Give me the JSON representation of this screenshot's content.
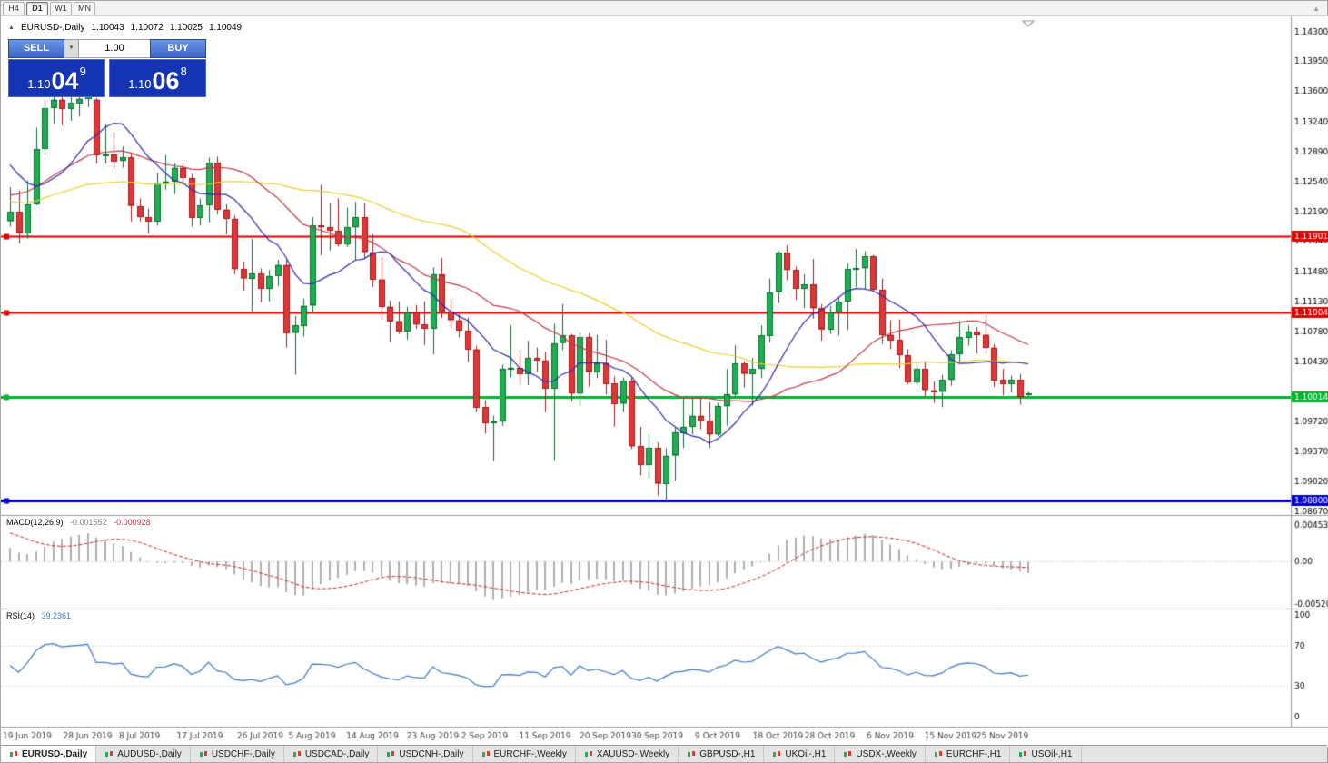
{
  "icons": {
    "one_click_toggle": "▲",
    "volume_chevron": "▼",
    "toolbar_right": "▲"
  },
  "toolbar": {
    "timeframes": [
      {
        "label": "H4",
        "active": false
      },
      {
        "label": "D1",
        "active": true
      },
      {
        "label": "W1",
        "active": false
      },
      {
        "label": "MN",
        "active": false
      }
    ]
  },
  "header": {
    "symbol_line": "EURUSD-,Daily",
    "ohlc": [
      "1.10043",
      "1.10072",
      "1.10025",
      "1.10049"
    ]
  },
  "one_click": {
    "sell_label": "SELL",
    "buy_label": "BUY",
    "volume": "1.00",
    "sell_price": {
      "prefix": "1.10",
      "big": "04",
      "sup": "9"
    },
    "buy_price": {
      "prefix": "1.10",
      "big": "06",
      "sup": "8"
    }
  },
  "indicators": {
    "macd": {
      "label": "MACD(12,26,9)",
      "value1": "-0.001552",
      "value2": "-0.000928",
      "scale": [
        "0.004536",
        "0.00",
        "-0.005205"
      ]
    },
    "rsi": {
      "label": "RSI(14)",
      "value": "39.2361",
      "scale": [
        "100",
        "70",
        "30",
        "0"
      ],
      "levels": [
        70,
        30
      ]
    }
  },
  "tabs": [
    {
      "label": "EURUSD-,Daily",
      "active": true
    },
    {
      "label": "AUDUSD-,Daily",
      "active": false
    },
    {
      "label": "USDCHF-,Daily",
      "active": false
    },
    {
      "label": "USDCAD-,Daily",
      "active": false
    },
    {
      "label": "USDCNH-,Daily",
      "active": false
    },
    {
      "label": "EURCHF-,Weekly",
      "active": false
    },
    {
      "label": "XAUUSD-,Weekly",
      "active": false
    },
    {
      "label": "GBPUSD-,H1",
      "active": false
    },
    {
      "label": "UKOil-,H1",
      "active": false
    },
    {
      "label": "USDX-,Weekly",
      "active": false
    },
    {
      "label": "EURCHF-,H1",
      "active": false
    },
    {
      "label": "USOil-,H1",
      "active": false
    }
  ],
  "chart_data": {
    "type": "candlestick",
    "symbol": "EURUSD-",
    "timeframe": "Daily",
    "price_axis": {
      "min": 1.08625,
      "max": 1.14455,
      "labels": [
        "1.14300",
        "1.13950",
        "1.13600",
        "1.13240",
        "1.12890",
        "1.12540",
        "1.12190",
        "1.11840",
        "1.11480",
        "1.11130",
        "1.10780",
        "1.10430",
        "1.09720",
        "1.09370",
        "1.09020",
        "1.08670"
      ]
    },
    "date_labels": [
      {
        "label": "19 Jun 2019",
        "index": 2
      },
      {
        "label": "28 Jun 2019",
        "index": 9
      },
      {
        "label": "8 Jul 2019",
        "index": 15
      },
      {
        "label": "17 Jul 2019",
        "index": 22
      },
      {
        "label": "26 Jul 2019",
        "index": 29
      },
      {
        "label": "5 Aug 2019",
        "index": 35
      },
      {
        "label": "14 Aug 2019",
        "index": 42
      },
      {
        "label": "23 Aug 2019",
        "index": 49
      },
      {
        "label": "2 Sep 2019",
        "index": 55
      },
      {
        "label": "11 Sep 2019",
        "index": 62
      },
      {
        "label": "20 Sep 2019",
        "index": 69
      },
      {
        "label": "30 Sep 2019",
        "index": 75
      },
      {
        "label": "9 Oct 2019",
        "index": 82
      },
      {
        "label": "18 Oct 2019",
        "index": 89
      },
      {
        "label": "28 Oct 2019",
        "index": 95
      },
      {
        "label": "6 Nov 2019",
        "index": 102
      },
      {
        "label": "15 Nov 2019",
        "index": 109
      },
      {
        "label": "25 Nov 2019",
        "index": 115
      }
    ],
    "candles": [
      [
        1.1207,
        1.1247,
        1.1201,
        1.1218
      ],
      [
        1.1218,
        1.1243,
        1.1181,
        1.1193
      ],
      [
        1.1193,
        1.1255,
        1.1187,
        1.1227
      ],
      [
        1.1227,
        1.1317,
        1.1226,
        1.1292
      ],
      [
        1.1292,
        1.135,
        1.1285,
        1.134
      ],
      [
        1.134,
        1.1358,
        1.1322,
        1.135
      ],
      [
        1.135,
        1.1363,
        1.132,
        1.1339
      ],
      [
        1.1339,
        1.1357,
        1.1325,
        1.1346
      ],
      [
        1.1346,
        1.1362,
        1.133,
        1.1351
      ],
      [
        1.1351,
        1.1366,
        1.1341,
        1.1357
      ],
      [
        1.135,
        1.1352,
        1.1275,
        1.1285
      ],
      [
        1.1285,
        1.1322,
        1.1275,
        1.1286
      ],
      [
        1.1286,
        1.1312,
        1.1268,
        1.1278
      ],
      [
        1.1278,
        1.1295,
        1.127,
        1.1282
      ],
      [
        1.1282,
        1.1288,
        1.1207,
        1.1225
      ],
      [
        1.1225,
        1.1234,
        1.1207,
        1.1212
      ],
      [
        1.1212,
        1.1222,
        1.1193,
        1.1207
      ],
      [
        1.1207,
        1.1264,
        1.1202,
        1.1252
      ],
      [
        1.1252,
        1.1285,
        1.1244,
        1.1254
      ],
      [
        1.1254,
        1.1275,
        1.1239,
        1.127
      ],
      [
        1.127,
        1.1276,
        1.1251,
        1.1258
      ],
      [
        1.1258,
        1.1263,
        1.1201,
        1.1211
      ],
      [
        1.1211,
        1.1234,
        1.1202,
        1.1226
      ],
      [
        1.1226,
        1.1282,
        1.1206,
        1.1276
      ],
      [
        1.1276,
        1.1283,
        1.1215,
        1.1221
      ],
      [
        1.1221,
        1.1227,
        1.1192,
        1.121
      ],
      [
        1.121,
        1.1214,
        1.1145,
        1.1151
      ],
      [
        1.1151,
        1.116,
        1.1126,
        1.114
      ],
      [
        1.114,
        1.1187,
        1.1101,
        1.1146
      ],
      [
        1.1146,
        1.1152,
        1.1112,
        1.1128
      ],
      [
        1.1128,
        1.115,
        1.1113,
        1.1143
      ],
      [
        1.1143,
        1.1162,
        1.1131,
        1.1156
      ],
      [
        1.1156,
        1.1162,
        1.1059,
        1.1076
      ],
      [
        1.1076,
        1.1096,
        1.1027,
        1.1085
      ],
      [
        1.1085,
        1.1116,
        1.1072,
        1.1108
      ],
      [
        1.1108,
        1.1212,
        1.1101,
        1.1202
      ],
      [
        1.1202,
        1.125,
        1.1167,
        1.12
      ],
      [
        1.12,
        1.1228,
        1.1173,
        1.1196
      ],
      [
        1.1196,
        1.1234,
        1.1178,
        1.118
      ],
      [
        1.118,
        1.1223,
        1.1177,
        1.12
      ],
      [
        1.12,
        1.123,
        1.1161,
        1.1212
      ],
      [
        1.1212,
        1.1229,
        1.1163,
        1.1171
      ],
      [
        1.1171,
        1.1192,
        1.113,
        1.1139
      ],
      [
        1.1139,
        1.1165,
        1.1092,
        1.1107
      ],
      [
        1.1107,
        1.1114,
        1.1066,
        1.109
      ],
      [
        1.109,
        1.1113,
        1.1075,
        1.1078
      ],
      [
        1.1078,
        1.1107,
        1.1068,
        1.11
      ],
      [
        1.11,
        1.1109,
        1.1081,
        1.1086
      ],
      [
        1.1086,
        1.1113,
        1.1062,
        1.1081
      ],
      [
        1.1081,
        1.1153,
        1.1051,
        1.1145
      ],
      [
        1.1145,
        1.1164,
        1.1094,
        1.1101
      ],
      [
        1.1101,
        1.1116,
        1.1082,
        1.1091
      ],
      [
        1.1091,
        1.1098,
        1.1071,
        1.1079
      ],
      [
        1.1079,
        1.1094,
        1.1042,
        1.1057
      ],
      [
        1.1057,
        1.1061,
        1.0983,
        1.0989
      ],
      [
        1.0989,
        1.0997,
        1.0958,
        1.097
      ],
      [
        1.097,
        1.0979,
        1.0926,
        1.0972
      ],
      [
        1.0972,
        1.1039,
        1.0967,
        1.1034
      ],
      [
        1.1034,
        1.1085,
        1.1024,
        1.1035
      ],
      [
        1.1035,
        1.1056,
        1.1015,
        1.1028
      ],
      [
        1.1028,
        1.1067,
        1.1015,
        1.1047
      ],
      [
        1.1047,
        1.1059,
        1.103,
        1.1044
      ],
      [
        1.1044,
        1.1054,
        1.0983,
        1.1011
      ],
      [
        1.1011,
        1.1087,
        1.0927,
        1.1064
      ],
      [
        1.1064,
        1.111,
        1.1056,
        1.1073
      ],
      [
        1.1073,
        1.1075,
        1.0996,
        1.1005
      ],
      [
        1.1005,
        1.1076,
        1.099,
        1.1071
      ],
      [
        1.1071,
        1.1076,
        1.1013,
        1.103
      ],
      [
        1.103,
        1.1074,
        1.1023,
        1.1041
      ],
      [
        1.1041,
        1.1068,
        1.1004,
        1.1017
      ],
      [
        1.1017,
        1.1025,
        1.0966,
        1.0993
      ],
      [
        1.0993,
        1.1024,
        1.0983,
        1.102
      ],
      [
        1.102,
        1.1024,
        1.094,
        1.0943
      ],
      [
        1.0943,
        1.0966,
        1.0909,
        1.0921
      ],
      [
        1.0921,
        1.0958,
        1.0905,
        1.0941
      ],
      [
        1.0941,
        1.0948,
        1.0885,
        1.0899
      ],
      [
        1.0899,
        1.0941,
        1.0879,
        1.0932
      ],
      [
        1.0932,
        1.0965,
        1.0903,
        1.0959
      ],
      [
        1.0959,
        1.0999,
        1.0941,
        1.0966
      ],
      [
        1.0966,
        1.0999,
        1.0957,
        1.0979
      ],
      [
        1.0979,
        1.1,
        1.0963,
        1.0973
      ],
      [
        1.0973,
        1.0995,
        1.0941,
        1.0957
      ],
      [
        1.0957,
        1.0994,
        1.0955,
        1.099
      ],
      [
        1.099,
        1.1034,
        1.0967,
        1.1004
      ],
      [
        1.1004,
        1.1062,
        1.1002,
        1.104
      ],
      [
        1.104,
        1.1043,
        1.1012,
        1.1028
      ],
      [
        1.1028,
        1.1047,
        1.0991,
        1.1034
      ],
      [
        1.1034,
        1.1085,
        1.1023,
        1.1073
      ],
      [
        1.1073,
        1.114,
        1.1065,
        1.1124
      ],
      [
        1.1124,
        1.1172,
        1.1111,
        1.117
      ],
      [
        1.117,
        1.1179,
        1.1138,
        1.115
      ],
      [
        1.115,
        1.1154,
        1.1115,
        1.1128
      ],
      [
        1.1128,
        1.1145,
        1.1105,
        1.1133
      ],
      [
        1.1133,
        1.1163,
        1.1093,
        1.1105
      ],
      [
        1.1105,
        1.111,
        1.1067,
        1.108
      ],
      [
        1.108,
        1.1108,
        1.1075,
        1.11
      ],
      [
        1.11,
        1.1118,
        1.1073,
        1.1113
      ],
      [
        1.1113,
        1.1158,
        1.108,
        1.1151
      ],
      [
        1.1151,
        1.1175,
        1.113,
        1.1152
      ],
      [
        1.1152,
        1.1172,
        1.1128,
        1.1166
      ],
      [
        1.1166,
        1.1168,
        1.1124,
        1.1127
      ],
      [
        1.1127,
        1.114,
        1.1063,
        1.1074
      ],
      [
        1.1074,
        1.1091,
        1.1057,
        1.1068
      ],
      [
        1.1068,
        1.1092,
        1.1035,
        1.105
      ],
      [
        1.105,
        1.1057,
        1.1016,
        1.1018
      ],
      [
        1.1018,
        1.1041,
        1.1015,
        1.1034
      ],
      [
        1.1034,
        1.1043,
        1.1002,
        1.1009
      ],
      [
        1.1009,
        1.1019,
        1.0994,
        1.1007
      ],
      [
        1.1007,
        1.1027,
        1.0989,
        1.1021
      ],
      [
        1.1021,
        1.1056,
        1.1014,
        1.1051
      ],
      [
        1.1051,
        1.109,
        1.1041,
        1.1071
      ],
      [
        1.1071,
        1.1085,
        1.1061,
        1.1078
      ],
      [
        1.1078,
        1.1083,
        1.1052,
        1.1074
      ],
      [
        1.1074,
        1.1097,
        1.1052,
        1.1059
      ],
      [
        1.1059,
        1.1063,
        1.1013,
        1.1021
      ],
      [
        1.1021,
        1.1034,
        1.1003,
        1.1016
      ],
      [
        1.1016,
        1.1026,
        1.1006,
        1.1021
      ],
      [
        1.1021,
        1.1028,
        1.0992,
        1.1001
      ],
      [
        1.10043,
        1.10072,
        1.10025,
        1.10049
      ]
    ],
    "pre_closes": [
      1.1134,
      1.1142,
      1.115,
      1.1158,
      1.1166,
      1.1174,
      1.1182,
      1.119,
      1.1198,
      1.1206,
      1.1214,
      1.1224,
      1.124,
      1.1256,
      1.127,
      1.1284,
      1.1296,
      1.131,
      1.1322,
      1.1333,
      1.131,
      1.1288,
      1.1277,
      1.124,
      1.122,
      1.1218
    ],
    "ma_periods": [
      10,
      25,
      50
    ],
    "macd_periods": [
      12,
      26,
      9
    ],
    "rsi_period": 14,
    "macd_scale": {
      "min": -0.0058,
      "max": 0.0056
    },
    "hlines": [
      {
        "price": 1.11901,
        "label": "1.11901",
        "color": "#dd0000",
        "width": 2
      },
      {
        "price": 1.11004,
        "label": "1.11004",
        "color": "#dd0000",
        "width": 2
      },
      {
        "price": 1.10014,
        "label": "1.10014",
        "color": "#00b432",
        "width": 3
      },
      {
        "price": 1.088,
        "label": "1.08800",
        "color": "#0000cc",
        "width": 3
      }
    ],
    "colors": {
      "bg": "#ffffff",
      "bull": "#1fae52",
      "bull_border": "#0e6e33",
      "bear": "#e23535",
      "bear_border": "#9c1f1f",
      "ma_fast": "#2d2db4",
      "ma_mid": "#c23b4b",
      "ma_slow": "#e6d22e",
      "macd_bar": "#b0b0b0",
      "macd_signal": "#cc2b2b",
      "rsi_line": "#3c78c8",
      "axis_text": "#000000",
      "date_text": "#444444"
    }
  }
}
